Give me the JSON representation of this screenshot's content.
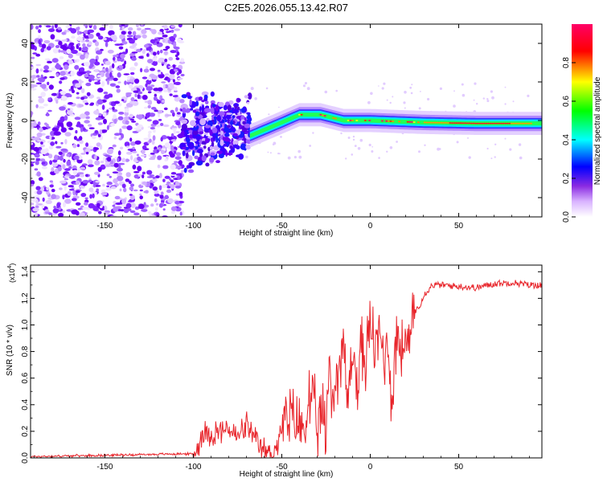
{
  "figure_title": "C2E5.2026.055.13.42.R07",
  "chart_data": [
    {
      "type": "heatmap",
      "title": "C2E5.2026.055.13.42.R07",
      "xlabel": "Height of straight line (km)",
      "ylabel": "Frequency (Hz)",
      "xlim": [
        -192,
        97
      ],
      "ylim": [
        -50,
        50
      ],
      "x_ticks": [
        -150,
        -100,
        -50,
        0,
        50
      ],
      "y_ticks": [
        -40,
        -20,
        0,
        20,
        40
      ],
      "colorbar": {
        "label": "Normalized spectral amplitude",
        "range": [
          0,
          1
        ],
        "ticks": [
          0.0,
          0.2,
          0.4,
          0.6,
          0.8
        ],
        "tick_labels": [
          "0.0",
          "0.2",
          "0.4",
          "0.6",
          "0.8"
        ],
        "colors": [
          "#ffffff",
          "#d9b3ff",
          "#7f00ff",
          "#0000ff",
          "#00ffff",
          "#00ff00",
          "#ffff00",
          "#ff0000",
          "#ff0066"
        ]
      },
      "regions": [
        {
          "name": "noise",
          "x_range": [
            -192,
            -106
          ],
          "freq_range": [
            -50,
            50
          ],
          "amplitude": 0.1
        },
        {
          "name": "transition",
          "x_range": [
            -106,
            -68
          ],
          "freq_range": [
            -25,
            20
          ],
          "amplitude": 0.2
        },
        {
          "name": "signal",
          "x_range": [
            -68,
            97
          ],
          "freq_range": [
            -3,
            3
          ],
          "amplitude": 0.95
        }
      ],
      "ridge": [
        {
          "x": -68,
          "freq": -8
        },
        {
          "x": -50,
          "freq": -1
        },
        {
          "x": -40,
          "freq": 3
        },
        {
          "x": -28,
          "freq": 3
        },
        {
          "x": -15,
          "freq": 0
        },
        {
          "x": 0,
          "freq": 0
        },
        {
          "x": 30,
          "freq": -1
        },
        {
          "x": 60,
          "freq": -1.5
        },
        {
          "x": 97,
          "freq": -1.5
        }
      ]
    },
    {
      "type": "line",
      "xlabel": "Height of straight line (km)",
      "ylabel": "SNR (10 * v/v)",
      "multiplier_label": "(x10",
      "multiplier_exponent": "4",
      "xlim": [
        -192,
        97
      ],
      "ylim": [
        0,
        1.45
      ],
      "x_ticks": [
        -150,
        -100,
        -50,
        0,
        50
      ],
      "y_ticks": [
        0.0,
        0.2,
        0.4,
        0.6,
        0.8,
        1.0,
        1.2,
        1.4
      ],
      "y_tick_labels": [
        "0.0",
        "0.2",
        "0.4",
        "0.6",
        "0.8",
        "1.0",
        "1.2",
        "1.4"
      ],
      "color": "#e8242a",
      "series": [
        {
          "name": "SNR",
          "x": [
            -192,
            -150,
            -110,
            -100,
            -97,
            -95,
            -90,
            -85,
            -80,
            -75,
            -70,
            -65,
            -60,
            -55,
            -52,
            -50,
            -45,
            -40,
            -37,
            -35,
            -32,
            -30,
            -27,
            -25,
            -23,
            -22,
            -20,
            -18,
            -15,
            -13,
            -12,
            -10,
            -7,
            -5,
            -3,
            0,
            3,
            5,
            8,
            10,
            12,
            15,
            18,
            20,
            22,
            25,
            28,
            30,
            35,
            40,
            50,
            60,
            70,
            80,
            90,
            97
          ],
          "y": [
            0.01,
            0.02,
            0.03,
            0.03,
            0.08,
            0.2,
            0.18,
            0.2,
            0.22,
            0.15,
            0.25,
            0.12,
            0.05,
            0.03,
            0.12,
            0.22,
            0.3,
            0.25,
            0.2,
            0.45,
            0.4,
            0.2,
            0.35,
            0.12,
            0.85,
            0.4,
            0.5,
            0.7,
            0.9,
            0.3,
            0.6,
            0.8,
            0.5,
            0.9,
            0.7,
            1.0,
            0.8,
            0.95,
            0.75,
            0.9,
            0.4,
            0.95,
            0.8,
            0.9,
            0.8,
            1.1,
            1.15,
            1.22,
            1.3,
            1.3,
            1.29,
            1.28,
            1.31,
            1.32,
            1.3,
            1.3
          ]
        }
      ]
    }
  ]
}
